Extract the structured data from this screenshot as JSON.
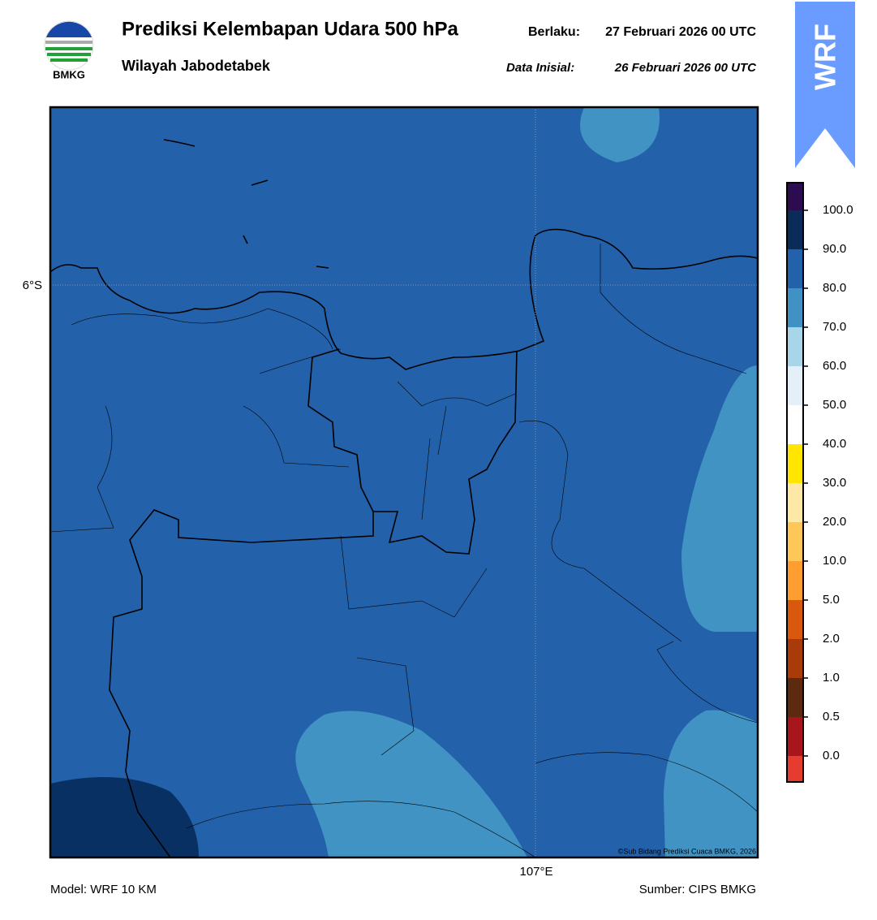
{
  "header": {
    "logo_text": "BMKG",
    "title": "Prediksi Kelembapan Udara 500 hPa",
    "subtitle": "Wilayah Jabodetabek",
    "valid_label": "Berlaku:",
    "valid_time": "27 Februari 2026 00 UTC",
    "init_label": "Data Inisial:",
    "init_time": "26 Februari 2026 00 UTC",
    "badge": "WRF"
  },
  "map": {
    "lat_label": "6°S",
    "lon_label": "107°E",
    "credit": "©Sub Bidang Prediksi Cuaca BMKG, 2026"
  },
  "colorbar": {
    "labels": [
      "100.0",
      "90.0",
      "80.0",
      "70.0",
      "60.0",
      "50.0",
      "40.0",
      "30.0",
      "20.0",
      "10.0",
      "5.0",
      "2.0",
      "1.0",
      "0.5",
      "0.0"
    ],
    "colors": [
      "#2c0b50",
      "#0b2b58",
      "#2262aa",
      "#4192c4",
      "#a9d5e8",
      "#e5eff8",
      "#ffffff",
      "#ffe500",
      "#fde8a6",
      "#ffc757",
      "#fe9d30",
      "#d9580e",
      "#a93b0a",
      "#5c2a0e",
      "#a8151a",
      "#e63b2f"
    ]
  },
  "footer": {
    "model": "Model: WRF 10 KM",
    "source": "Sumber: CIPS BMKG"
  }
}
